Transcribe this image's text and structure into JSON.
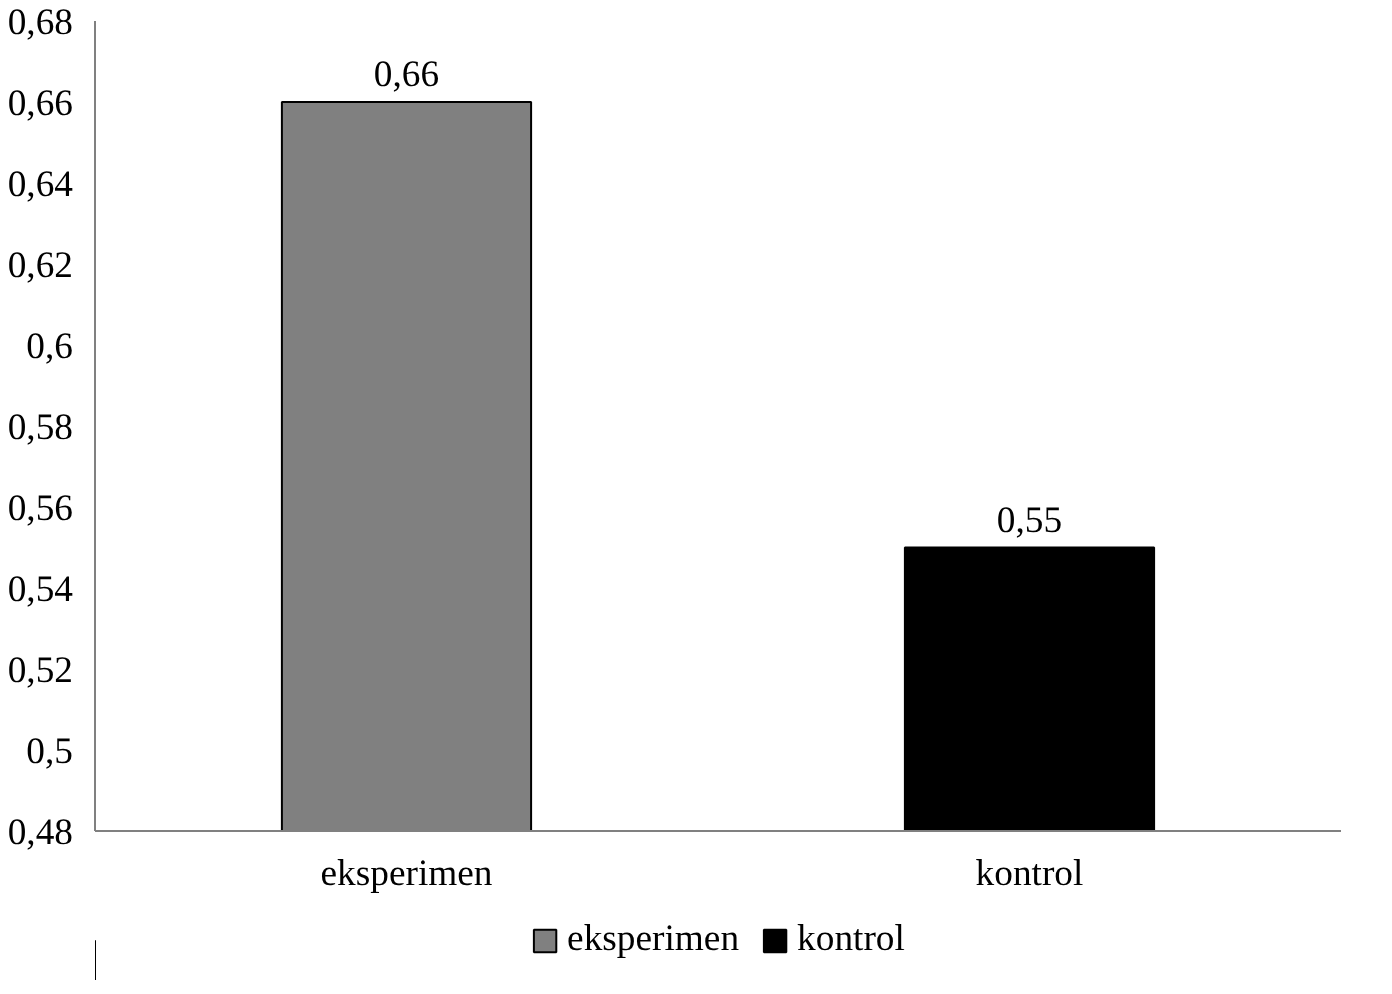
{
  "chart_data": {
    "type": "bar",
    "categories": [
      "eksperimen",
      "kontrol"
    ],
    "series": [
      {
        "name": "eksperimen",
        "color": "#808080",
        "values": [
          0.66,
          null
        ],
        "value_labels": [
          "0,66",
          null
        ]
      },
      {
        "name": "kontrol",
        "color": "#000000",
        "values": [
          null,
          0.55
        ],
        "value_labels": [
          null,
          "0,55"
        ]
      }
    ],
    "ylim": [
      0.48,
      0.68
    ],
    "yticks": [
      {
        "value": 0.48,
        "label": "0,48"
      },
      {
        "value": 0.5,
        "label": "0,5"
      },
      {
        "value": 0.52,
        "label": "0,52"
      },
      {
        "value": 0.54,
        "label": "0,54"
      },
      {
        "value": 0.56,
        "label": "0,56"
      },
      {
        "value": 0.58,
        "label": "0,58"
      },
      {
        "value": 0.6,
        "label": "0,6"
      },
      {
        "value": 0.62,
        "label": "0,62"
      },
      {
        "value": 0.64,
        "label": "0,64"
      },
      {
        "value": 0.66,
        "label": "0,66"
      },
      {
        "value": 0.68,
        "label": "0,68"
      }
    ],
    "grid": false,
    "legend": "bottom"
  }
}
